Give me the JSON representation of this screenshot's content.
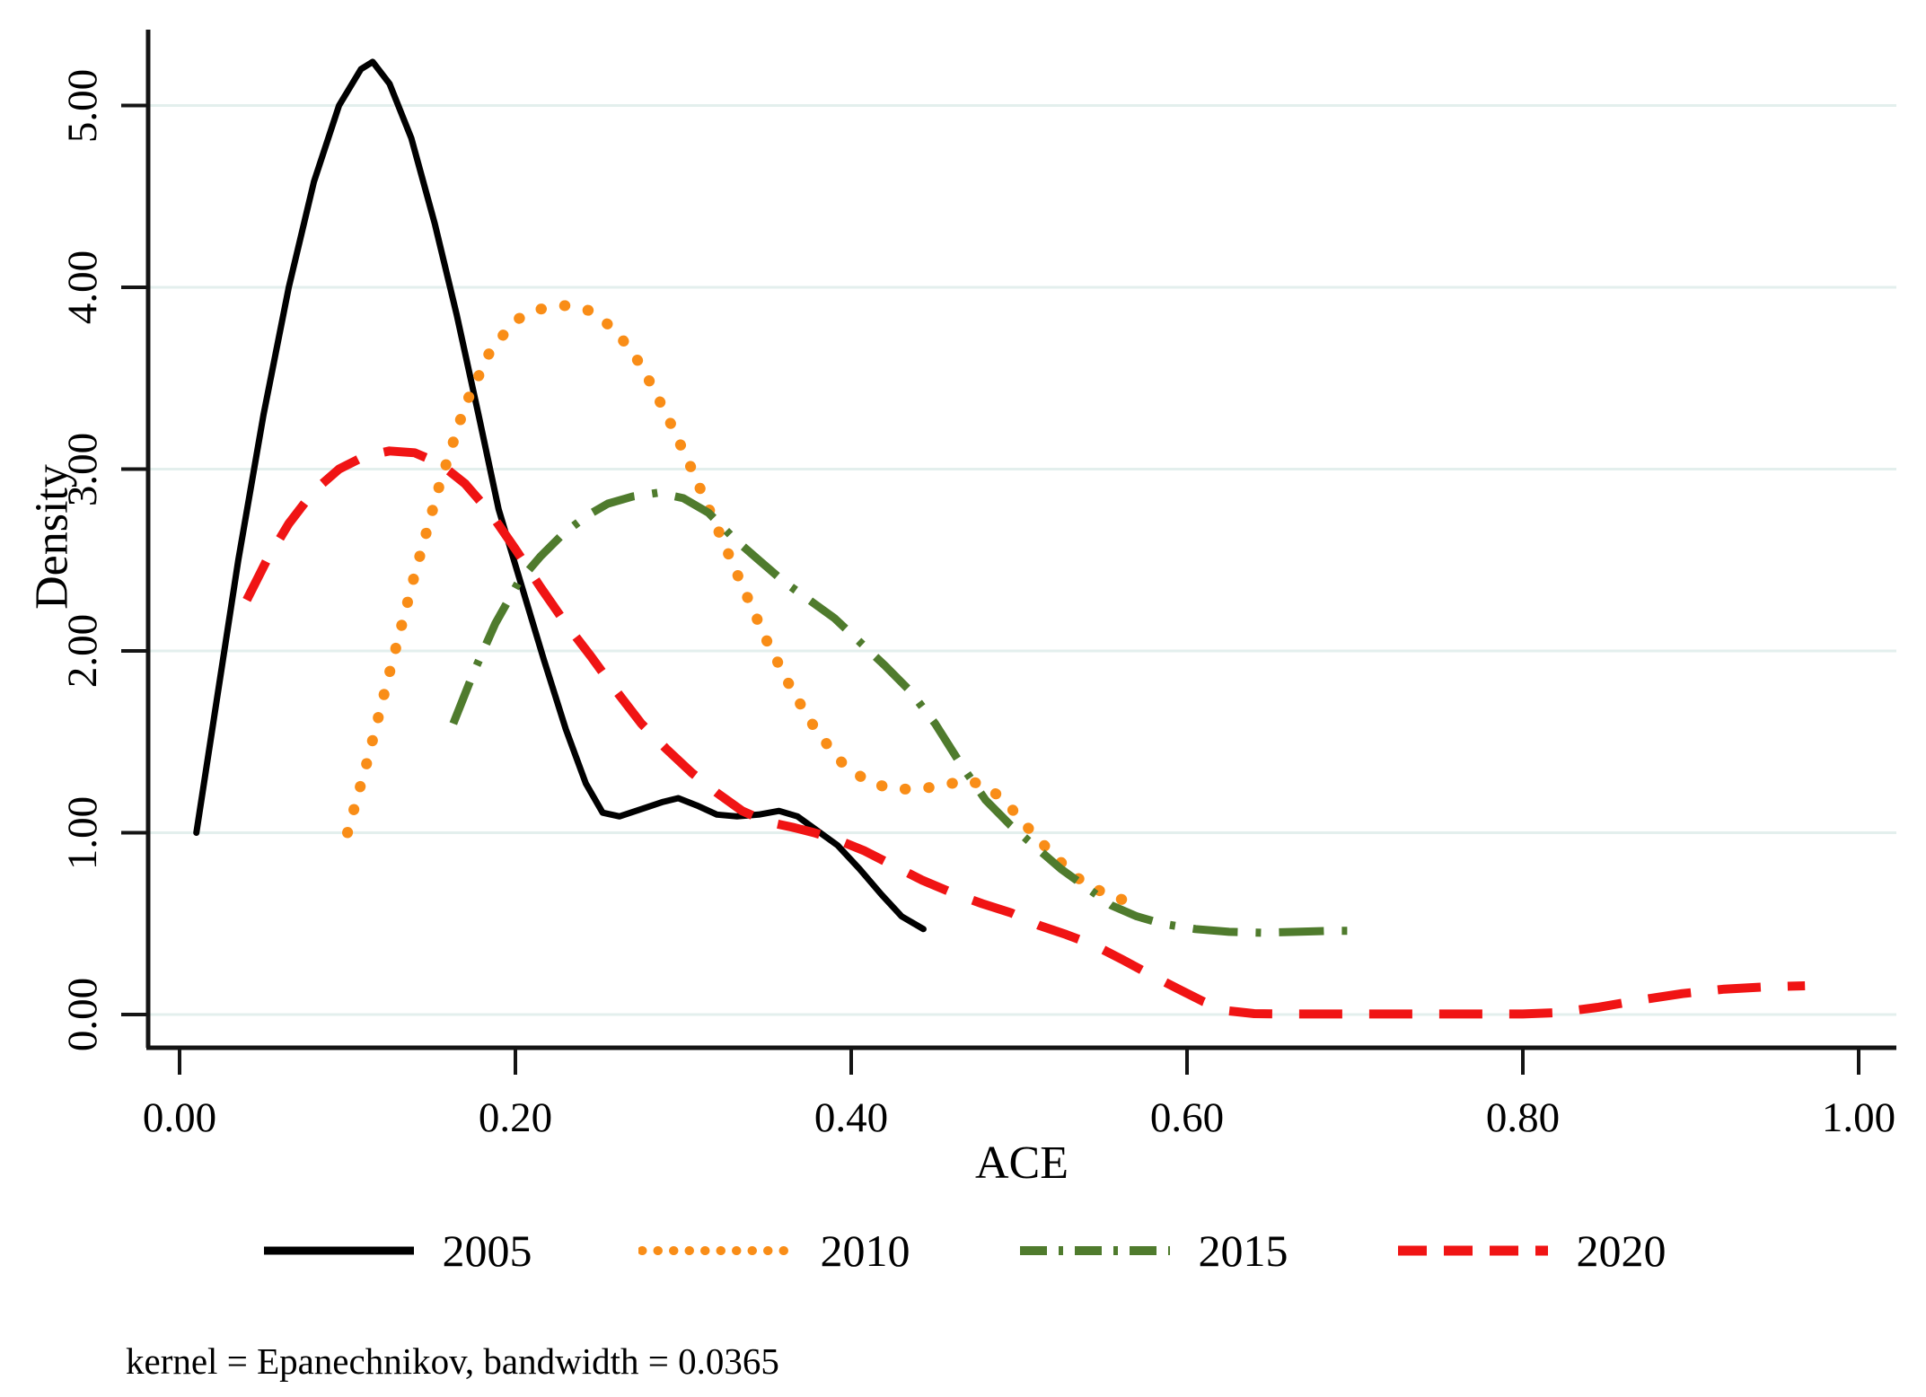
{
  "axes": {
    "x_label": "ACE",
    "y_label": "Density",
    "x_ticks": [
      {
        "v": 0.0,
        "label": "0.00"
      },
      {
        "v": 0.2,
        "label": "0.20"
      },
      {
        "v": 0.4,
        "label": "0.40"
      },
      {
        "v": 0.6,
        "label": "0.60"
      },
      {
        "v": 0.8,
        "label": "0.80"
      },
      {
        "v": 1.0,
        "label": "1.00"
      }
    ],
    "y_ticks": [
      {
        "v": 0.0,
        "label": "0.00"
      },
      {
        "v": 1.0,
        "label": "1.00"
      },
      {
        "v": 2.0,
        "label": "2.00"
      },
      {
        "v": 3.0,
        "label": "3.00"
      },
      {
        "v": 4.0,
        "label": "4.00"
      },
      {
        "v": 5.0,
        "label": "5.00"
      }
    ]
  },
  "note": "kernel = Epanechnikov, bandwidth = 0.0365",
  "colors": {
    "axis": "#141414",
    "gridline": "#e3efed",
    "black_2005": "#000000",
    "orange_2010": "#f98d17",
    "green_2015": "#4f7b2d",
    "red_2020": "#f01414"
  },
  "chart_data": {
    "type": "line",
    "title": "",
    "xlabel": "ACE",
    "ylabel": "Density",
    "xlim": [
      0.0,
      1.0
    ],
    "ylim": [
      0.0,
      5.3
    ],
    "grid": "horizontal",
    "legend_position": "bottom",
    "kernel_note": "kernel = Epanechnikov, bandwidth = 0.0365",
    "series": [
      {
        "name": "2005",
        "style": "solid",
        "color": "#000000",
        "points": [
          [
            0.01,
            1.0
          ],
          [
            0.022,
            1.72
          ],
          [
            0.035,
            2.5
          ],
          [
            0.05,
            3.3
          ],
          [
            0.065,
            4.0
          ],
          [
            0.08,
            4.58
          ],
          [
            0.095,
            5.0
          ],
          [
            0.108,
            5.2
          ],
          [
            0.115,
            5.24
          ],
          [
            0.125,
            5.12
          ],
          [
            0.138,
            4.82
          ],
          [
            0.152,
            4.35
          ],
          [
            0.165,
            3.85
          ],
          [
            0.178,
            3.3
          ],
          [
            0.19,
            2.78
          ],
          [
            0.203,
            2.38
          ],
          [
            0.217,
            1.95
          ],
          [
            0.23,
            1.57
          ],
          [
            0.242,
            1.27
          ],
          [
            0.252,
            1.11
          ],
          [
            0.262,
            1.09
          ],
          [
            0.275,
            1.13
          ],
          [
            0.288,
            1.17
          ],
          [
            0.297,
            1.19
          ],
          [
            0.308,
            1.15
          ],
          [
            0.32,
            1.1
          ],
          [
            0.332,
            1.09
          ],
          [
            0.345,
            1.1
          ],
          [
            0.357,
            1.12
          ],
          [
            0.368,
            1.09
          ],
          [
            0.38,
            1.01
          ],
          [
            0.392,
            0.93
          ],
          [
            0.405,
            0.8
          ],
          [
            0.418,
            0.66
          ],
          [
            0.43,
            0.54
          ],
          [
            0.443,
            0.47
          ]
        ]
      },
      {
        "name": "2010",
        "style": "dotted",
        "color": "#f98d17",
        "points": [
          [
            0.1,
            1.0
          ],
          [
            0.112,
            1.4
          ],
          [
            0.125,
            1.88
          ],
          [
            0.14,
            2.42
          ],
          [
            0.155,
            2.92
          ],
          [
            0.17,
            3.35
          ],
          [
            0.185,
            3.65
          ],
          [
            0.2,
            3.82
          ],
          [
            0.215,
            3.88
          ],
          [
            0.23,
            3.9
          ],
          [
            0.245,
            3.87
          ],
          [
            0.26,
            3.76
          ],
          [
            0.275,
            3.57
          ],
          [
            0.29,
            3.3
          ],
          [
            0.305,
            3.0
          ],
          [
            0.32,
            2.68
          ],
          [
            0.335,
            2.36
          ],
          [
            0.35,
            2.05
          ],
          [
            0.365,
            1.78
          ],
          [
            0.38,
            1.55
          ],
          [
            0.395,
            1.38
          ],
          [
            0.41,
            1.28
          ],
          [
            0.425,
            1.24
          ],
          [
            0.44,
            1.24
          ],
          [
            0.455,
            1.26
          ],
          [
            0.468,
            1.29
          ],
          [
            0.48,
            1.26
          ],
          [
            0.492,
            1.17
          ],
          [
            0.505,
            1.03
          ],
          [
            0.52,
            0.88
          ],
          [
            0.535,
            0.75
          ],
          [
            0.55,
            0.67
          ],
          [
            0.562,
            0.63
          ],
          [
            0.572,
            0.61
          ]
        ]
      },
      {
        "name": "2015",
        "style": "dashdot",
        "color": "#4f7b2d",
        "points": [
          [
            0.163,
            1.6
          ],
          [
            0.175,
            1.88
          ],
          [
            0.188,
            2.15
          ],
          [
            0.202,
            2.38
          ],
          [
            0.215,
            2.52
          ],
          [
            0.228,
            2.64
          ],
          [
            0.242,
            2.74
          ],
          [
            0.255,
            2.81
          ],
          [
            0.27,
            2.85
          ],
          [
            0.285,
            2.87
          ],
          [
            0.3,
            2.84
          ],
          [
            0.315,
            2.76
          ],
          [
            0.33,
            2.62
          ],
          [
            0.345,
            2.5
          ],
          [
            0.36,
            2.38
          ],
          [
            0.375,
            2.28
          ],
          [
            0.39,
            2.18
          ],
          [
            0.405,
            2.05
          ],
          [
            0.42,
            1.92
          ],
          [
            0.435,
            1.78
          ],
          [
            0.45,
            1.6
          ],
          [
            0.465,
            1.38
          ],
          [
            0.48,
            1.18
          ],
          [
            0.495,
            1.04
          ],
          [
            0.51,
            0.92
          ],
          [
            0.525,
            0.8
          ],
          [
            0.54,
            0.7
          ],
          [
            0.555,
            0.6
          ],
          [
            0.57,
            0.54
          ],
          [
            0.585,
            0.5
          ],
          [
            0.605,
            0.47
          ],
          [
            0.625,
            0.455
          ],
          [
            0.645,
            0.45
          ],
          [
            0.665,
            0.455
          ],
          [
            0.685,
            0.46
          ],
          [
            0.7,
            0.46
          ]
        ]
      },
      {
        "name": "2020",
        "style": "dashed",
        "color": "#f01414",
        "points": [
          [
            0.04,
            2.28
          ],
          [
            0.052,
            2.5
          ],
          [
            0.065,
            2.7
          ],
          [
            0.08,
            2.88
          ],
          [
            0.095,
            3.0
          ],
          [
            0.11,
            3.07
          ],
          [
            0.125,
            3.1
          ],
          [
            0.14,
            3.09
          ],
          [
            0.155,
            3.03
          ],
          [
            0.17,
            2.92
          ],
          [
            0.185,
            2.76
          ],
          [
            0.2,
            2.56
          ],
          [
            0.215,
            2.35
          ],
          [
            0.23,
            2.15
          ],
          [
            0.245,
            1.97
          ],
          [
            0.26,
            1.78
          ],
          [
            0.275,
            1.6
          ],
          [
            0.29,
            1.46
          ],
          [
            0.305,
            1.33
          ],
          [
            0.32,
            1.22
          ],
          [
            0.335,
            1.12
          ],
          [
            0.35,
            1.06
          ],
          [
            0.365,
            1.03
          ],
          [
            0.378,
            1.0
          ],
          [
            0.392,
            0.96
          ],
          [
            0.408,
            0.9
          ],
          [
            0.425,
            0.82
          ],
          [
            0.442,
            0.74
          ],
          [
            0.46,
            0.67
          ],
          [
            0.478,
            0.61
          ],
          [
            0.495,
            0.56
          ],
          [
            0.512,
            0.49
          ],
          [
            0.528,
            0.44
          ],
          [
            0.545,
            0.38
          ],
          [
            0.562,
            0.3
          ],
          [
            0.578,
            0.22
          ],
          [
            0.595,
            0.14
          ],
          [
            0.61,
            0.07
          ],
          [
            0.625,
            0.02
          ],
          [
            0.64,
            0.005
          ],
          [
            0.66,
            0.003
          ],
          [
            0.7,
            0.003
          ],
          [
            0.75,
            0.003
          ],
          [
            0.8,
            0.003
          ],
          [
            0.82,
            0.01
          ],
          [
            0.845,
            0.04
          ],
          [
            0.87,
            0.08
          ],
          [
            0.895,
            0.115
          ],
          [
            0.92,
            0.14
          ],
          [
            0.945,
            0.152
          ],
          [
            0.968,
            0.158
          ]
        ]
      }
    ]
  }
}
